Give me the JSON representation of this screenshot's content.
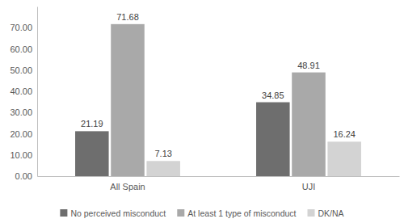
{
  "chart_data": {
    "type": "bar",
    "categories": [
      "All Spain",
      "UJI"
    ],
    "series": [
      {
        "name": "No perceived misconduct",
        "color": "#6e6e6e",
        "values": [
          21.19,
          34.85
        ]
      },
      {
        "name": "At least 1 type of misconduct",
        "color": "#a9a9a9",
        "values": [
          71.68,
          48.91
        ]
      },
      {
        "name": "DK/NA",
        "color": "#d3d3d3",
        "values": [
          7.13,
          16.24
        ]
      }
    ],
    "ylim": [
      0,
      80
    ],
    "yticks": [
      {
        "value": 0,
        "label": "0.00"
      },
      {
        "value": 10,
        "label": "10.00"
      },
      {
        "value": 20,
        "label": "20.00"
      },
      {
        "value": 30,
        "label": "30.00"
      },
      {
        "value": 40,
        "label": "40.00"
      },
      {
        "value": 50,
        "label": "50.00"
      },
      {
        "value": 60,
        "label": "60.00"
      },
      {
        "value": 70,
        "label": "70.00"
      }
    ],
    "grid": false,
    "data_labels": true,
    "legend": "bottom"
  }
}
